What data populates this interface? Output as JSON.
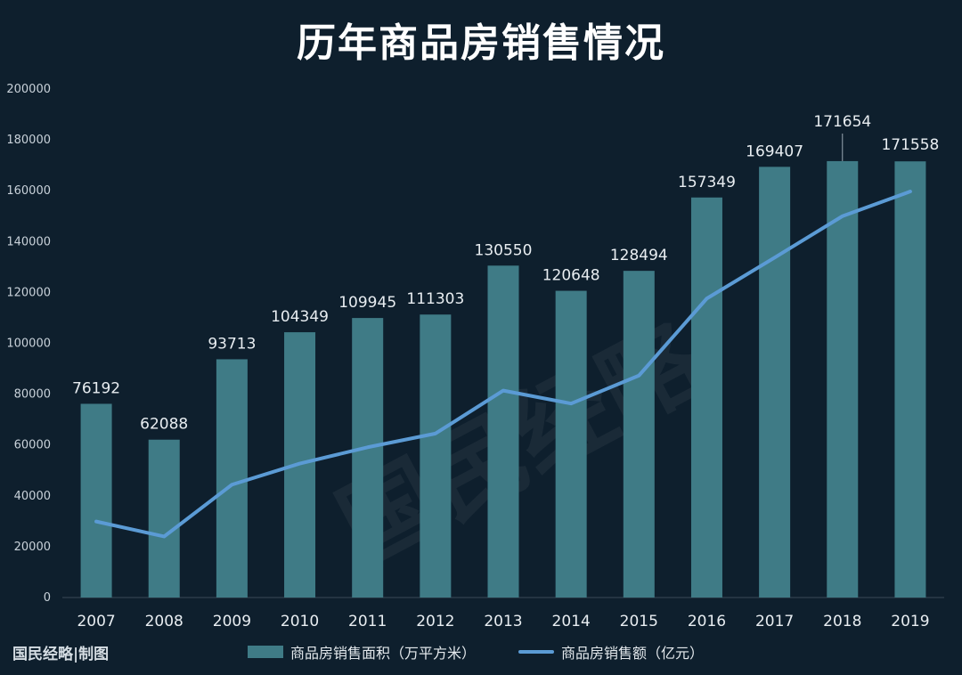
{
  "title": "历年商品房销售情况",
  "credit": "国民经略|制图",
  "watermark": "国民经略",
  "colors": {
    "background": "#0e1f2d",
    "bar": "#3f7b86",
    "line": "#5b9bd5",
    "text": "#e8edf1"
  },
  "legend": {
    "bar_label": "商品房销售面积（万平方米）",
    "line_label": "商品房销售额（亿元）"
  },
  "chart_data": {
    "type": "bar",
    "categories": [
      "2007",
      "2008",
      "2009",
      "2010",
      "2011",
      "2012",
      "2013",
      "2014",
      "2015",
      "2016",
      "2017",
      "2018",
      "2019"
    ],
    "ylim": [
      0,
      200000
    ],
    "yticks": [
      0,
      20000,
      40000,
      60000,
      80000,
      100000,
      120000,
      140000,
      160000,
      180000,
      200000
    ],
    "grid": false,
    "legend_position": "bottom",
    "series": [
      {
        "name": "商品房销售面积（万平方米）",
        "type": "bar",
        "values": [
          76192,
          62088,
          93713,
          104349,
          109945,
          111303,
          130550,
          120648,
          128494,
          157349,
          169407,
          171654,
          171558
        ],
        "data_labels": [
          "76192",
          "62088",
          "93713",
          "104349",
          "109945",
          "111303",
          "130550",
          "120648",
          "128494",
          "157349",
          "169407",
          "171654",
          "171558"
        ]
      },
      {
        "name": "商品房销售额（亿元）",
        "type": "line",
        "values": [
          29900,
          24000,
          44400,
          52700,
          59100,
          64500,
          81400,
          76300,
          87300,
          117600,
          133700,
          150000,
          159700
        ]
      }
    ]
  }
}
